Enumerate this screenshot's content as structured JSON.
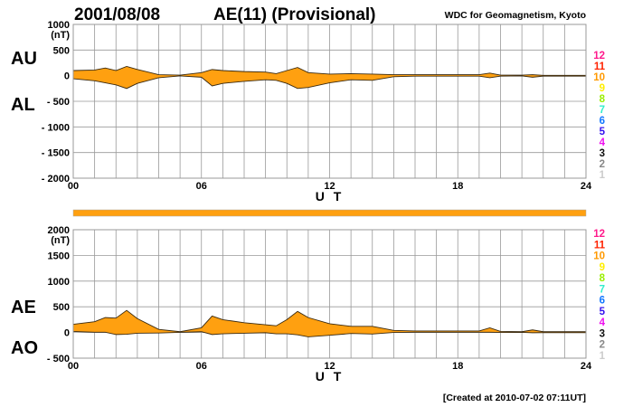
{
  "header": {
    "date": "2001/08/08",
    "title": "AE(11) (Provisional)",
    "source": "WDC for Geomagnetism, Kyoto"
  },
  "footer": "[Created at 2010-07-02 07:11UT]",
  "legend_numbers": [
    {
      "label": "12",
      "color": "#ff1a8c"
    },
    {
      "label": "11",
      "color": "#ff2200"
    },
    {
      "label": "10",
      "color": "#ff9900"
    },
    {
      "label": "9",
      "color": "#ffee00"
    },
    {
      "label": "8",
      "color": "#99ee00"
    },
    {
      "label": "7",
      "color": "#33eecc"
    },
    {
      "label": "6",
      "color": "#1177ff"
    },
    {
      "label": "5",
      "color": "#3311ee"
    },
    {
      "label": "4",
      "color": "#ee11ee"
    },
    {
      "label": "3",
      "color": "#111111"
    },
    {
      "label": "2",
      "color": "#888888"
    },
    {
      "label": "1",
      "color": "#cccccc"
    }
  ],
  "colors": {
    "fill": "#ffa010",
    "line": "#3a2a10",
    "grid": "#999999",
    "bar": "#ffa010"
  },
  "chart_data": [
    {
      "type": "area",
      "title": "AU / AL",
      "xlabel": "U T",
      "ylabel": "(nT)",
      "series_labels": [
        "AU",
        "AL"
      ],
      "ylim": [
        -2000,
        1000
      ],
      "yticks": [
        "1000",
        "500",
        "0",
        "- 500",
        "- 1000",
        "- 1500",
        "- 2000"
      ],
      "ytick_values": [
        1000,
        500,
        0,
        -500,
        -1000,
        -1500,
        -2000
      ],
      "xlim": [
        0,
        24
      ],
      "xticks": [
        "00",
        "06",
        "12",
        "18",
        "24"
      ],
      "xtick_values": [
        0,
        6,
        12,
        18,
        24
      ],
      "grid": true,
      "x": [
        0,
        1,
        1.5,
        2,
        2.5,
        3,
        4,
        5,
        6,
        6.5,
        7,
        8,
        9,
        9.5,
        10,
        10.5,
        11,
        12,
        13,
        14,
        15,
        16,
        17,
        18,
        19,
        19.5,
        20,
        21,
        21.5,
        22,
        23,
        24
      ],
      "series": [
        {
          "name": "AU",
          "values": [
            100,
            110,
            150,
            100,
            180,
            120,
            20,
            10,
            60,
            120,
            100,
            80,
            70,
            40,
            100,
            160,
            60,
            30,
            40,
            30,
            20,
            20,
            20,
            20,
            20,
            50,
            10,
            10,
            20,
            5,
            5,
            5
          ]
        },
        {
          "name": "AL",
          "values": [
            -60,
            -100,
            -140,
            -180,
            -250,
            -150,
            -40,
            -5,
            -30,
            -200,
            -150,
            -110,
            -80,
            -90,
            -150,
            -250,
            -230,
            -140,
            -80,
            -90,
            -20,
            -10,
            -10,
            -10,
            -10,
            -40,
            -10,
            -5,
            -30,
            -10,
            -10,
            -10
          ]
        }
      ]
    },
    {
      "type": "area",
      "title": "AE / AO",
      "xlabel": "U T",
      "ylabel": "(nT)",
      "series_labels": [
        "AE",
        "AO"
      ],
      "ylim": [
        -500,
        2000
      ],
      "yticks": [
        "2000",
        "1500",
        "1000",
        "500",
        "0",
        "- 500"
      ],
      "ytick_values": [
        2000,
        1500,
        1000,
        500,
        0,
        -500
      ],
      "xlim": [
        0,
        24
      ],
      "xticks": [
        "00",
        "06",
        "12",
        "18",
        "24"
      ],
      "xtick_values": [
        0,
        6,
        12,
        18,
        24
      ],
      "grid": true,
      "x": [
        0,
        1,
        1.5,
        2,
        2.5,
        3,
        4,
        5,
        6,
        6.5,
        7,
        8,
        9,
        9.5,
        10,
        10.5,
        11,
        12,
        13,
        14,
        15,
        16,
        17,
        18,
        19,
        19.5,
        20,
        21,
        21.5,
        22,
        23,
        24
      ],
      "series": [
        {
          "name": "AE",
          "values": [
            160,
            210,
            290,
            280,
            430,
            270,
            60,
            15,
            90,
            320,
            250,
            190,
            150,
            130,
            250,
            410,
            290,
            170,
            120,
            120,
            40,
            30,
            30,
            30,
            30,
            90,
            20,
            15,
            50,
            15,
            15,
            15
          ]
        },
        {
          "name": "AO",
          "values": [
            20,
            5,
            5,
            -40,
            -35,
            -15,
            -10,
            2.5,
            15,
            -40,
            -25,
            -15,
            -5,
            -25,
            -25,
            -45,
            -85,
            -55,
            -20,
            -30,
            0,
            5,
            5,
            5,
            5,
            5,
            0,
            2.5,
            -5,
            -2.5,
            -2.5,
            -2.5
          ]
        }
      ]
    }
  ]
}
